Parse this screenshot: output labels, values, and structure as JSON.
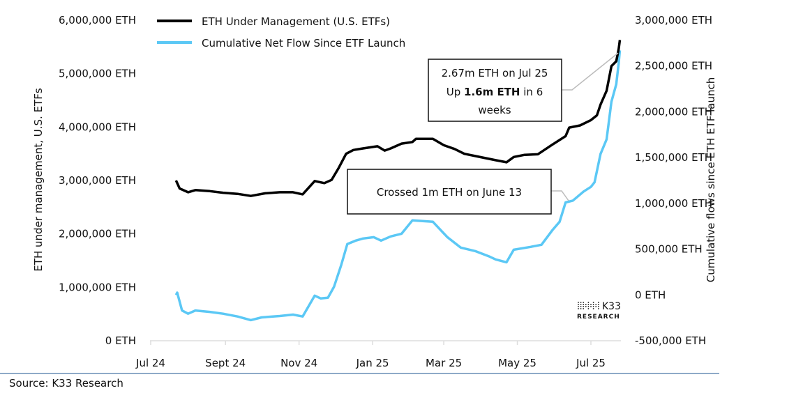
{
  "chart_data": {
    "type": "line",
    "title": "",
    "ylabel_left": "ETH under management, U.S. ETFs",
    "ylabel_right": "Cumulative flows since ETH ETF launch",
    "x_ticks": [
      "Jul 24",
      "Sept 24",
      "Nov 24",
      "Jan 25",
      "Mar 25",
      "May 25",
      "Jul 25"
    ],
    "x_tick_dates": [
      "2024-07-01",
      "2024-09-01",
      "2024-11-01",
      "2025-01-01",
      "2025-03-01",
      "2025-05-01",
      "2025-07-01"
    ],
    "ylim_left": [
      0,
      6000000
    ],
    "ylim_right": [
      -500000,
      3000000
    ],
    "y_ticks_left": [
      "6,000,000 ETH",
      "5,000,000 ETH",
      "4,000,000 ETH",
      "3,000,000 ETH",
      "2,000,000 ETH",
      "1,000,000 ETH",
      "0 ETH"
    ],
    "y_tick_values_left": [
      6000000,
      5000000,
      4000000,
      3000000,
      2000000,
      1000000,
      0
    ],
    "y_ticks_right": [
      "3,000,000 ETH",
      "2,500,000 ETH",
      "2,000,000 ETH",
      "1,500,000 ETH",
      "1,000,000 ETH",
      "500,000 ETH",
      "0 ETH",
      "-500,000 ETH"
    ],
    "y_tick_values_right": [
      3000000,
      2500000,
      2000000,
      1500000,
      1000000,
      500000,
      0,
      -500000
    ],
    "grid": false,
    "legend_position": "top-left",
    "series": [
      {
        "name": "ETH Under Management (U.S. ETFs)",
        "axis": "left",
        "color": "#000000",
        "points": [
          [
            "2024-07-22",
            3000000
          ],
          [
            "2024-07-25",
            2850000
          ],
          [
            "2024-08-01",
            2780000
          ],
          [
            "2024-08-07",
            2820000
          ],
          [
            "2024-08-19",
            2800000
          ],
          [
            "2024-08-30",
            2770000
          ],
          [
            "2024-09-11",
            2750000
          ],
          [
            "2024-09-22",
            2710000
          ],
          [
            "2024-10-04",
            2760000
          ],
          [
            "2024-10-16",
            2780000
          ],
          [
            "2024-10-27",
            2780000
          ],
          [
            "2024-11-04",
            2740000
          ],
          [
            "2024-11-14",
            2990000
          ],
          [
            "2024-11-22",
            2950000
          ],
          [
            "2024-11-28",
            3010000
          ],
          [
            "2024-12-04",
            3240000
          ],
          [
            "2024-12-10",
            3500000
          ],
          [
            "2024-12-16",
            3570000
          ],
          [
            "2024-12-24",
            3600000
          ],
          [
            "2025-01-05",
            3640000
          ],
          [
            "2025-01-11",
            3560000
          ],
          [
            "2025-01-16",
            3600000
          ],
          [
            "2025-01-25",
            3690000
          ],
          [
            "2025-02-03",
            3720000
          ],
          [
            "2025-02-06",
            3780000
          ],
          [
            "2025-02-20",
            3780000
          ],
          [
            "2025-03-01",
            3660000
          ],
          [
            "2025-03-10",
            3590000
          ],
          [
            "2025-03-18",
            3500000
          ],
          [
            "2025-04-02",
            3430000
          ],
          [
            "2025-04-13",
            3380000
          ],
          [
            "2025-04-22",
            3340000
          ],
          [
            "2025-04-28",
            3440000
          ],
          [
            "2025-05-07",
            3480000
          ],
          [
            "2025-05-18",
            3490000
          ],
          [
            "2025-05-30",
            3670000
          ],
          [
            "2025-06-10",
            3830000
          ],
          [
            "2025-06-13",
            3990000
          ],
          [
            "2025-06-22",
            4030000
          ],
          [
            "2025-07-01",
            4130000
          ],
          [
            "2025-07-06",
            4220000
          ],
          [
            "2025-07-09",
            4420000
          ],
          [
            "2025-07-14",
            4680000
          ],
          [
            "2025-07-18",
            5140000
          ],
          [
            "2025-07-22",
            5230000
          ],
          [
            "2025-07-24",
            5460000
          ],
          [
            "2025-07-25",
            5630000
          ]
        ]
      },
      {
        "name": "Cumulative Net Flow Since ETF Launch",
        "axis": "right",
        "color": "#5bc8f5",
        "points": [
          [
            "2024-07-22",
            0
          ],
          [
            "2024-07-23",
            25000
          ],
          [
            "2024-07-27",
            -170000
          ],
          [
            "2024-08-01",
            -205000
          ],
          [
            "2024-08-07",
            -170000
          ],
          [
            "2024-08-19",
            -185000
          ],
          [
            "2024-08-30",
            -205000
          ],
          [
            "2024-09-11",
            -235000
          ],
          [
            "2024-09-22",
            -275000
          ],
          [
            "2024-10-01",
            -245000
          ],
          [
            "2024-10-16",
            -230000
          ],
          [
            "2024-10-27",
            -215000
          ],
          [
            "2024-11-04",
            -235000
          ],
          [
            "2024-11-14",
            -8000
          ],
          [
            "2024-11-19",
            -38000
          ],
          [
            "2024-11-25",
            -30000
          ],
          [
            "2024-11-30",
            90000
          ],
          [
            "2024-12-06",
            327000
          ],
          [
            "2024-12-11",
            555000
          ],
          [
            "2024-12-18",
            593000
          ],
          [
            "2024-12-24",
            616000
          ],
          [
            "2025-01-02",
            631000
          ],
          [
            "2025-01-08",
            593000
          ],
          [
            "2025-01-16",
            639000
          ],
          [
            "2025-01-25",
            669000
          ],
          [
            "2025-02-03",
            814000
          ],
          [
            "2025-02-20",
            799000
          ],
          [
            "2025-03-04",
            631000
          ],
          [
            "2025-03-15",
            517000
          ],
          [
            "2025-03-27",
            479000
          ],
          [
            "2025-04-08",
            418000
          ],
          [
            "2025-04-13",
            388000
          ],
          [
            "2025-04-22",
            357000
          ],
          [
            "2025-04-28",
            494000
          ],
          [
            "2025-05-12",
            525000
          ],
          [
            "2025-05-21",
            548000
          ],
          [
            "2025-05-30",
            707000
          ],
          [
            "2025-06-05",
            799000
          ],
          [
            "2025-06-10",
            1010000
          ],
          [
            "2025-06-16",
            1030000
          ],
          [
            "2025-06-25",
            1130000
          ],
          [
            "2025-07-01",
            1180000
          ],
          [
            "2025-07-04",
            1230000
          ],
          [
            "2025-07-09",
            1540000
          ],
          [
            "2025-07-14",
            1700000
          ],
          [
            "2025-07-18",
            2110000
          ],
          [
            "2025-07-22",
            2300000
          ],
          [
            "2025-07-24",
            2530000
          ],
          [
            "2025-07-25",
            2670000
          ]
        ]
      }
    ],
    "annotations": [
      {
        "lines": [
          "2.67m ETH on Jul 25",
          "Up ",
          "1.6m ETH",
          " in 6",
          "weeks"
        ]
      },
      {
        "text": "Crossed 1m ETH on June 13"
      }
    ]
  },
  "logo": {
    "text_top": "K33",
    "text_bottom": "RESEARCH"
  },
  "source": "Source: K33 Research"
}
